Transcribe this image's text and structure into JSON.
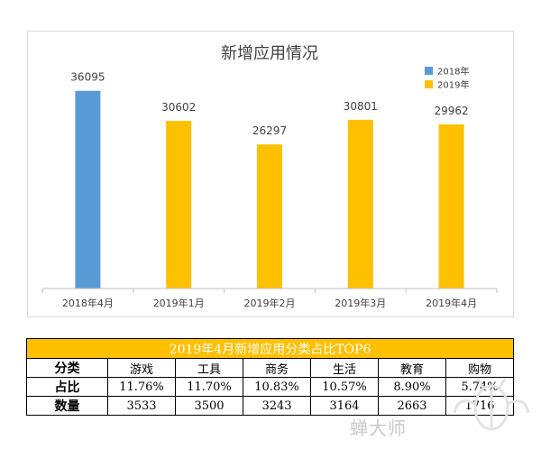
{
  "chart_data": {
    "type": "bar",
    "title": "新增应用情况",
    "categories": [
      "2018年4月",
      "2019年1月",
      "2019年2月",
      "2019年3月",
      "2019年4月"
    ],
    "values": [
      36095,
      30602,
      26297,
      30801,
      29962
    ],
    "series_of_point": [
      "2018年",
      "2019年",
      "2019年",
      "2019年",
      "2019年"
    ],
    "legend": [
      {
        "name": "2018年",
        "color": "#5b9bd5"
      },
      {
        "name": "2019年",
        "color": "#ffc000"
      }
    ],
    "legend_position": "top-right",
    "ylim": [
      0,
      40000
    ],
    "grid": false,
    "data_labels": true
  },
  "table": {
    "title": "2019年4月新增应用分类占比TOP6",
    "row_headers": [
      "分类",
      "占比",
      "数量"
    ],
    "columns": [
      {
        "category": "游戏",
        "share": "11.76%",
        "count": "3533"
      },
      {
        "category": "工具",
        "share": "11.70%",
        "count": "3500"
      },
      {
        "category": "商务",
        "share": "10.83%",
        "count": "3243"
      },
      {
        "category": "生活",
        "share": "10.57%",
        "count": "3164"
      },
      {
        "category": "教育",
        "share": "8.90%",
        "count": "2663"
      },
      {
        "category": "购物",
        "share": "5.74%",
        "count": "1716"
      }
    ]
  },
  "watermark": {
    "text": "蝉大师"
  }
}
